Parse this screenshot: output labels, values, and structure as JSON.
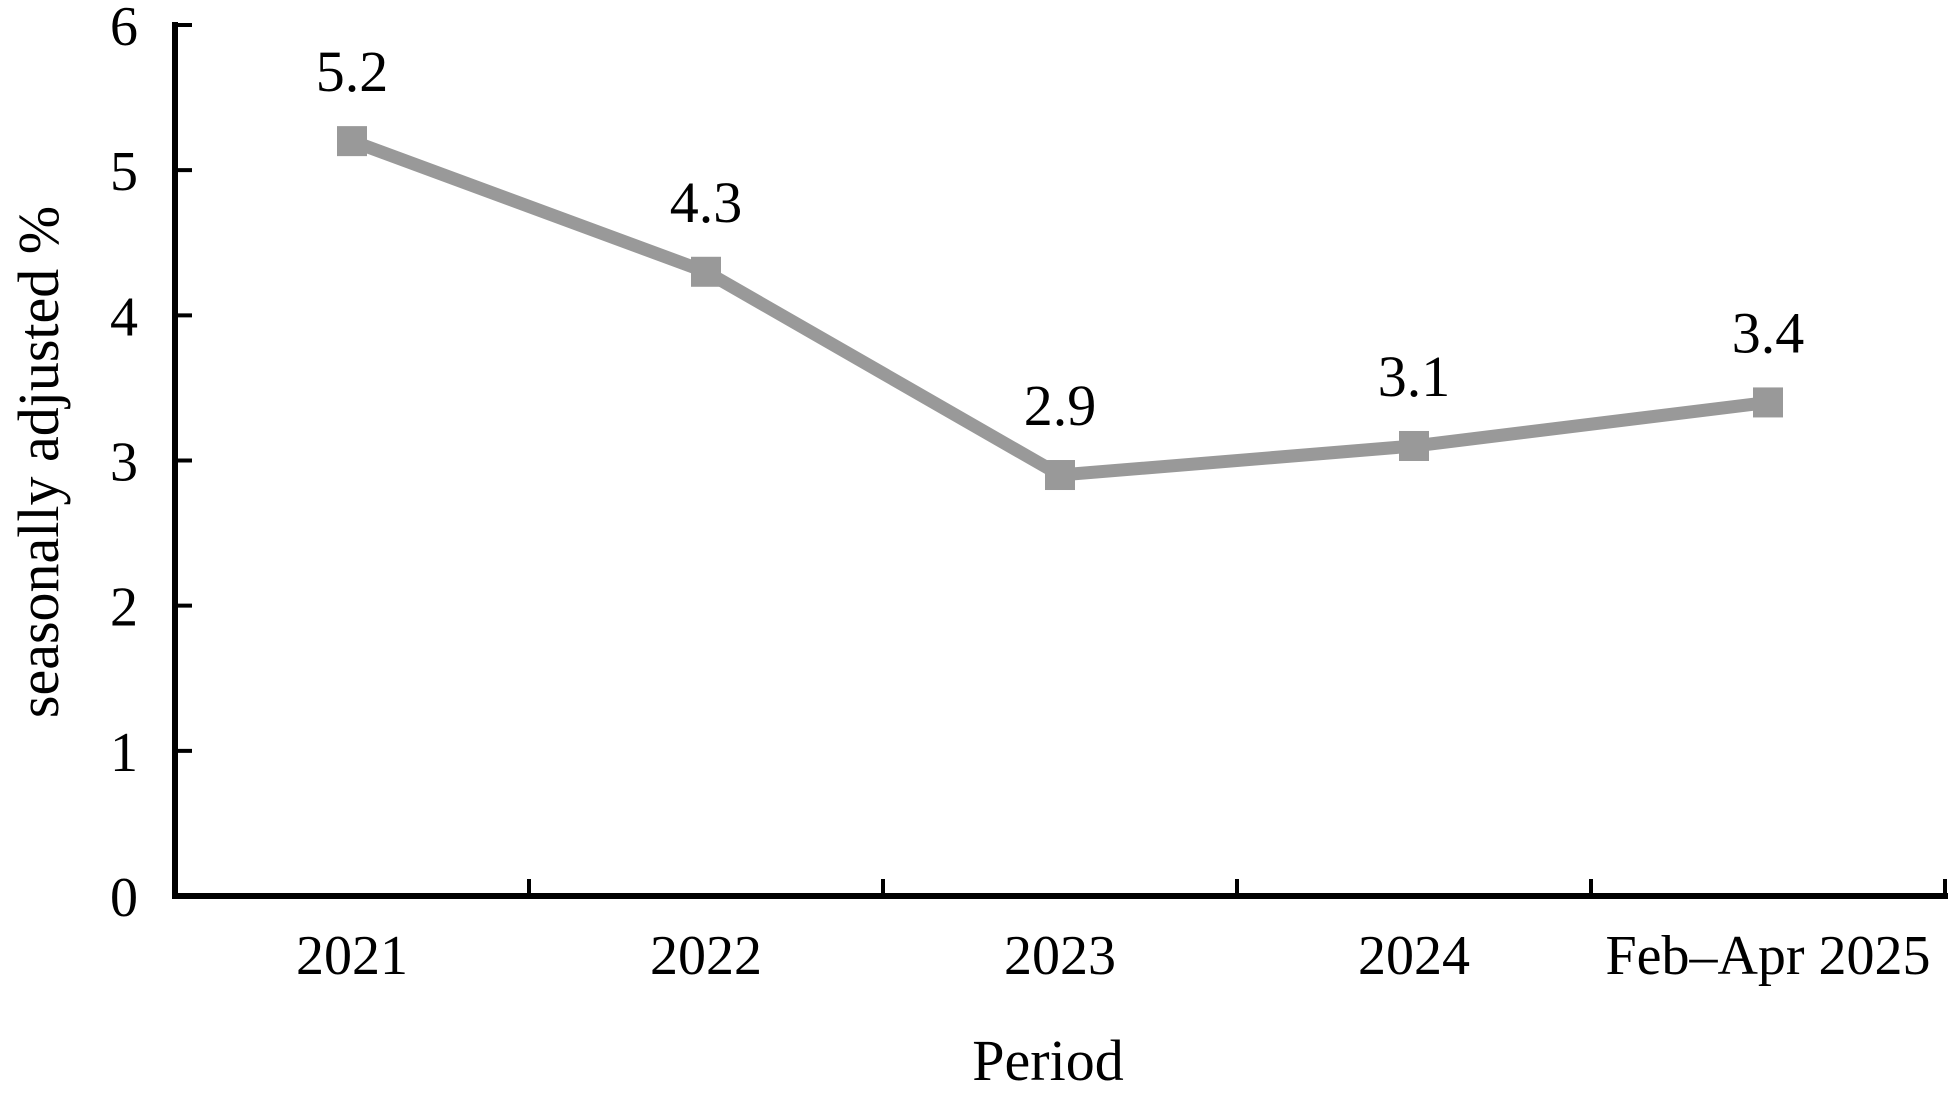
{
  "chart_data": {
    "type": "line",
    "title": "",
    "categories": [
      "2021",
      "2022",
      "2023",
      "2024",
      "Feb–Apr 2025"
    ],
    "values": [
      5.2,
      4.3,
      2.9,
      3.1,
      3.4
    ],
    "data_labels": [
      "5.2",
      "4.3",
      "2.9",
      "3.1",
      "3.4"
    ],
    "xlabel": "Period",
    "ylabel": "seasonally adjusted %",
    "y_ticks": [
      0,
      1,
      2,
      3,
      4,
      5,
      6
    ],
    "ylim": [
      0,
      6
    ],
    "grid": false,
    "legend_position": "none",
    "series": [
      {
        "name": "seasonally adjusted %",
        "values": [
          5.2,
          4.3,
          2.9,
          3.1,
          3.4
        ],
        "color": "#999999",
        "marker": "square"
      }
    ],
    "axis_color": "#000000",
    "tick_direction": "inside",
    "x_tick_placement": "between-categories"
  }
}
